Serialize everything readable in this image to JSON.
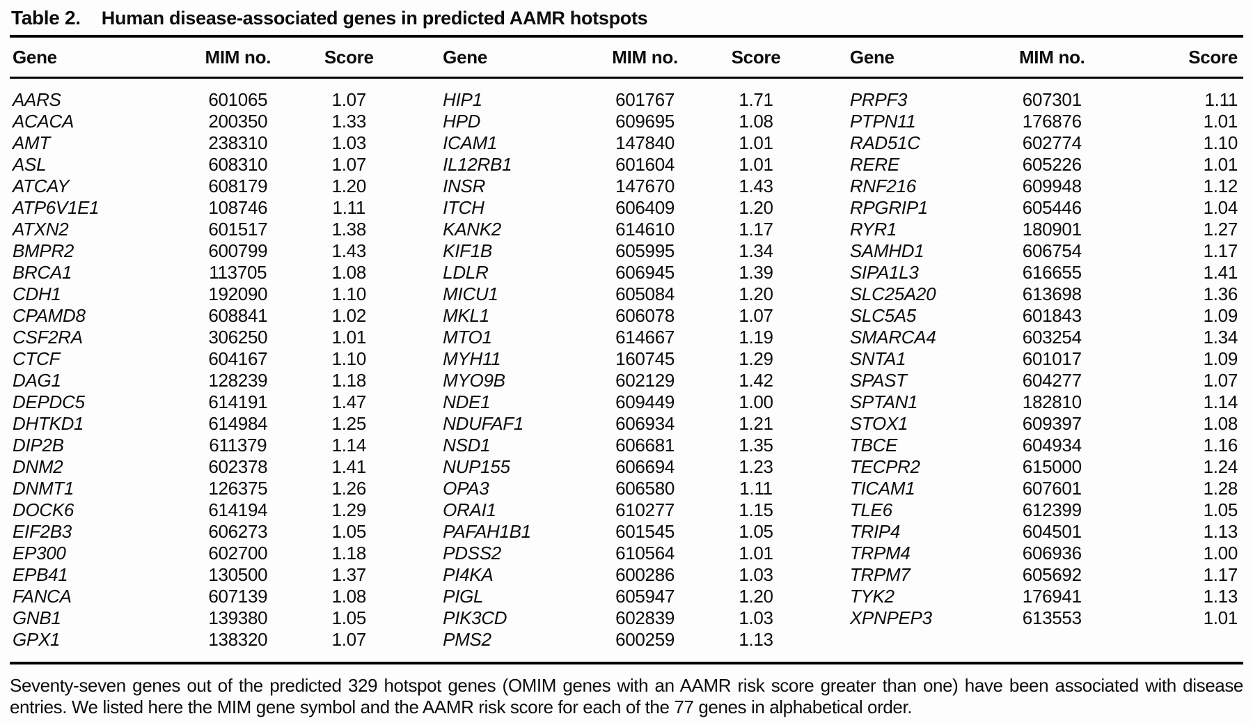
{
  "document": {
    "table_label": "Table 2.",
    "table_title": "Human disease-associated genes in predicted AAMR hotspots",
    "caption": "Seventy-seven genes out of the predicted 329 hotspot genes (OMIM genes with an AAMR risk score greater than one) have been associated with disease entries. We listed here the MIM gene symbol and the AAMR risk score for each of the 77 genes in alphabetical order."
  },
  "colors": {
    "text": "#0d0d0d",
    "rule": "#000000",
    "background": "#fdfdfd"
  },
  "table": {
    "headers": [
      "Gene",
      "MIM no.",
      "Score",
      "Gene",
      "MIM no.",
      "Score",
      "Gene",
      "MIM no.",
      "Score"
    ],
    "rows": [
      [
        [
          "AARS",
          "601065",
          "1.07"
        ],
        [
          "HIP1",
          "601767",
          "1.71"
        ],
        [
          "PRPF3",
          "607301",
          "1.11"
        ]
      ],
      [
        [
          "ACACA",
          "200350",
          "1.33"
        ],
        [
          "HPD",
          "609695",
          "1.08"
        ],
        [
          "PTPN11",
          "176876",
          "1.01"
        ]
      ],
      [
        [
          "AMT",
          "238310",
          "1.03"
        ],
        [
          "ICAM1",
          "147840",
          "1.01"
        ],
        [
          "RAD51C",
          "602774",
          "1.10"
        ]
      ],
      [
        [
          "ASL",
          "608310",
          "1.07"
        ],
        [
          "IL12RB1",
          "601604",
          "1.01"
        ],
        [
          "RERE",
          "605226",
          "1.01"
        ]
      ],
      [
        [
          "ATCAY",
          "608179",
          "1.20"
        ],
        [
          "INSR",
          "147670",
          "1.43"
        ],
        [
          "RNF216",
          "609948",
          "1.12"
        ]
      ],
      [
        [
          "ATP6V1E1",
          "108746",
          "1.11"
        ],
        [
          "ITCH",
          "606409",
          "1.20"
        ],
        [
          "RPGRIP1",
          "605446",
          "1.04"
        ]
      ],
      [
        [
          "ATXN2",
          "601517",
          "1.38"
        ],
        [
          "KANK2",
          "614610",
          "1.17"
        ],
        [
          "RYR1",
          "180901",
          "1.27"
        ]
      ],
      [
        [
          "BMPR2",
          "600799",
          "1.43"
        ],
        [
          "KIF1B",
          "605995",
          "1.34"
        ],
        [
          "SAMHD1",
          "606754",
          "1.17"
        ]
      ],
      [
        [
          "BRCA1",
          "113705",
          "1.08"
        ],
        [
          "LDLR",
          "606945",
          "1.39"
        ],
        [
          "SIPA1L3",
          "616655",
          "1.41"
        ]
      ],
      [
        [
          "CDH1",
          "192090",
          "1.10"
        ],
        [
          "MICU1",
          "605084",
          "1.20"
        ],
        [
          "SLC25A20",
          "613698",
          "1.36"
        ]
      ],
      [
        [
          "CPAMD8",
          "608841",
          "1.02"
        ],
        [
          "MKL1",
          "606078",
          "1.07"
        ],
        [
          "SLC5A5",
          "601843",
          "1.09"
        ]
      ],
      [
        [
          "CSF2RA",
          "306250",
          "1.01"
        ],
        [
          "MTO1",
          "614667",
          "1.19"
        ],
        [
          "SMARCA4",
          "603254",
          "1.34"
        ]
      ],
      [
        [
          "CTCF",
          "604167",
          "1.10"
        ],
        [
          "MYH11",
          "160745",
          "1.29"
        ],
        [
          "SNTA1",
          "601017",
          "1.09"
        ]
      ],
      [
        [
          "DAG1",
          "128239",
          "1.18"
        ],
        [
          "MYO9B",
          "602129",
          "1.42"
        ],
        [
          "SPAST",
          "604277",
          "1.07"
        ]
      ],
      [
        [
          "DEPDC5",
          "614191",
          "1.47"
        ],
        [
          "NDE1",
          "609449",
          "1.00"
        ],
        [
          "SPTAN1",
          "182810",
          "1.14"
        ]
      ],
      [
        [
          "DHTKD1",
          "614984",
          "1.25"
        ],
        [
          "NDUFAF1",
          "606934",
          "1.21"
        ],
        [
          "STOX1",
          "609397",
          "1.08"
        ]
      ],
      [
        [
          "DIP2B",
          "611379",
          "1.14"
        ],
        [
          "NSD1",
          "606681",
          "1.35"
        ],
        [
          "TBCE",
          "604934",
          "1.16"
        ]
      ],
      [
        [
          "DNM2",
          "602378",
          "1.41"
        ],
        [
          "NUP155",
          "606694",
          "1.23"
        ],
        [
          "TECPR2",
          "615000",
          "1.24"
        ]
      ],
      [
        [
          "DNMT1",
          "126375",
          "1.26"
        ],
        [
          "OPA3",
          "606580",
          "1.11"
        ],
        [
          "TICAM1",
          "607601",
          "1.28"
        ]
      ],
      [
        [
          "DOCK6",
          "614194",
          "1.29"
        ],
        [
          "ORAI1",
          "610277",
          "1.15"
        ],
        [
          "TLE6",
          "612399",
          "1.05"
        ]
      ],
      [
        [
          "EIF2B3",
          "606273",
          "1.05"
        ],
        [
          "PAFAH1B1",
          "601545",
          "1.05"
        ],
        [
          "TRIP4",
          "604501",
          "1.13"
        ]
      ],
      [
        [
          "EP300",
          "602700",
          "1.18"
        ],
        [
          "PDSS2",
          "610564",
          "1.01"
        ],
        [
          "TRPM4",
          "606936",
          "1.00"
        ]
      ],
      [
        [
          "EPB41",
          "130500",
          "1.37"
        ],
        [
          "PI4KA",
          "600286",
          "1.03"
        ],
        [
          "TRPM7",
          "605692",
          "1.17"
        ]
      ],
      [
        [
          "FANCA",
          "607139",
          "1.08"
        ],
        [
          "PIGL",
          "605947",
          "1.20"
        ],
        [
          "TYK2",
          "176941",
          "1.13"
        ]
      ],
      [
        [
          "GNB1",
          "139380",
          "1.05"
        ],
        [
          "PIK3CD",
          "602839",
          "1.03"
        ],
        [
          "XPNPEP3",
          "613553",
          "1.01"
        ]
      ],
      [
        [
          "GPX1",
          "138320",
          "1.07"
        ],
        [
          "PMS2",
          "600259",
          "1.13"
        ],
        null
      ]
    ]
  }
}
